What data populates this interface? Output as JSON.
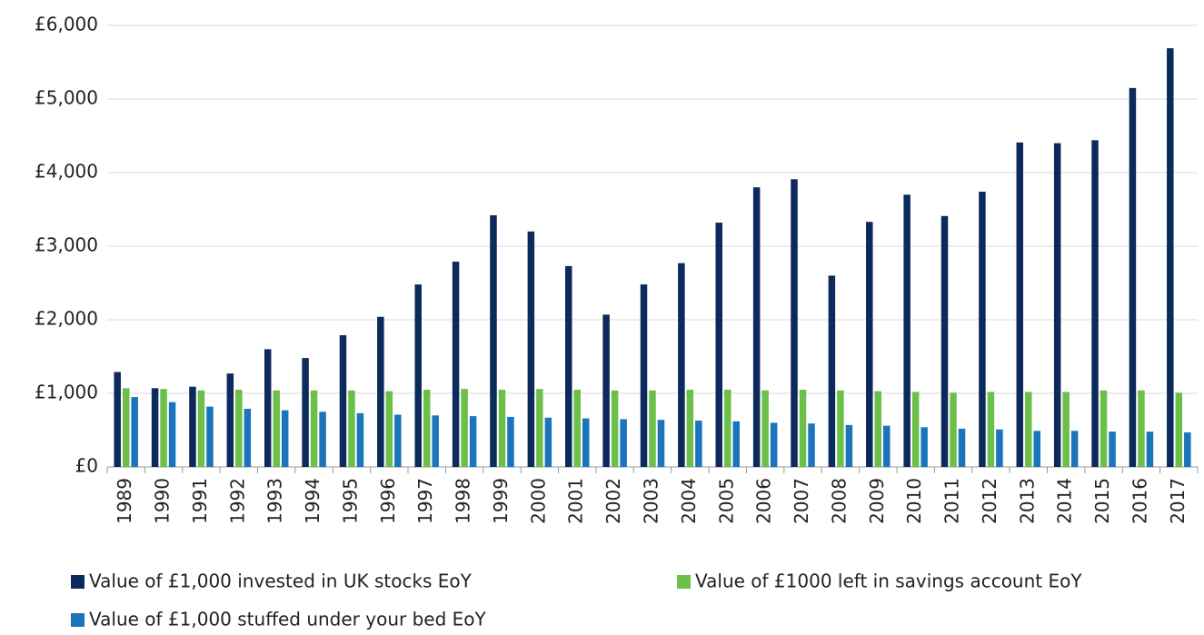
{
  "chart_data": {
    "type": "bar",
    "categories": [
      "1989",
      "1990",
      "1991",
      "1992",
      "1993",
      "1994",
      "1995",
      "1996",
      "1997",
      "1998",
      "1999",
      "2000",
      "2001",
      "2002",
      "2003",
      "2004",
      "2005",
      "2006",
      "2007",
      "2008",
      "2009",
      "2010",
      "2011",
      "2012",
      "2013",
      "2014",
      "2015",
      "2016",
      "2017"
    ],
    "series": [
      {
        "name": "Value of £1,000 invested in UK stocks EoY",
        "color": "#0c2a5b",
        "values": [
          1290,
          1070,
          1090,
          1270,
          1600,
          1480,
          1790,
          2040,
          2480,
          2790,
          3420,
          3200,
          2730,
          2070,
          2480,
          2770,
          3320,
          3800,
          3910,
          2600,
          3330,
          3700,
          3410,
          3740,
          4410,
          4400,
          4440,
          5150,
          5690
        ]
      },
      {
        "name": "Value of £1000 left in savings account EoY",
        "color": "#6cc04a",
        "values": [
          1070,
          1060,
          1040,
          1050,
          1040,
          1040,
          1040,
          1030,
          1050,
          1060,
          1050,
          1060,
          1050,
          1040,
          1040,
          1050,
          1050,
          1040,
          1050,
          1040,
          1030,
          1020,
          1010,
          1020,
          1020,
          1020,
          1040,
          1040,
          1010
        ]
      },
      {
        "name": "Value of £1,000 stuffed under your bed EoY",
        "color": "#1a75bc",
        "values": [
          950,
          880,
          820,
          790,
          770,
          750,
          730,
          710,
          700,
          690,
          680,
          670,
          660,
          650,
          640,
          630,
          620,
          600,
          590,
          570,
          560,
          540,
          520,
          510,
          490,
          490,
          480,
          480,
          470
        ]
      }
    ],
    "ylim": [
      0,
      6000
    ],
    "yticks": [
      {
        "value": 0,
        "label": "£0"
      },
      {
        "value": 1000,
        "label": "£1,000"
      },
      {
        "value": 2000,
        "label": "£2,000"
      },
      {
        "value": 3000,
        "label": "£3,000"
      },
      {
        "value": 4000,
        "label": "£4,000"
      },
      {
        "value": 5000,
        "label": "£5,000"
      },
      {
        "value": 6000,
        "label": "£6,000"
      }
    ],
    "grid": true,
    "legend": "bottom"
  }
}
